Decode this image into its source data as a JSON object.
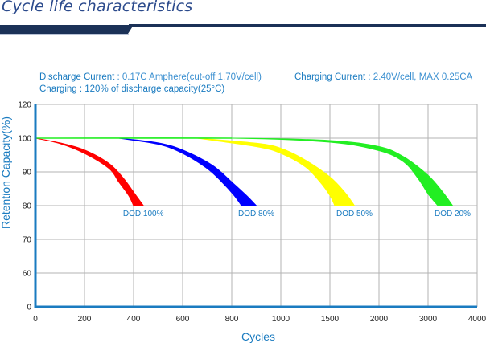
{
  "header": {
    "title": "Cycle life characteristics"
  },
  "notes": {
    "discharge_label": "Discharge Current",
    "discharge_value": " : 0.17C Amphere(cut-off 1.70V/cell)",
    "charging_current_label": "Charging Current",
    "charging_current_value": " : 2.40V/cell, MAX 0.25CA",
    "charging_label": "Charging : 120% of discharge capacity(25°C)"
  },
  "chart_data": {
    "type": "area",
    "title": "Cycle life characteristics",
    "xlabel": "Cycles",
    "ylabel": "Retention Capacity(%)",
    "x_ticks": [
      "0",
      "200",
      "400",
      "600",
      "800",
      "1000",
      "1500",
      "2000",
      "3000",
      "4000"
    ],
    "y_ticks": [
      "120",
      "100",
      "90",
      "80",
      "70",
      "60",
      "0"
    ],
    "y_tick_values": [
      120,
      100,
      90,
      80,
      70,
      60,
      0
    ],
    "x_scale_note": "x values given in tick-index units (0 = 0 cycles, 9 = 4000 cycles); axis is non-linear",
    "grid": true,
    "series": [
      {
        "name": "DOD 100%",
        "color": "#ff0000",
        "upper": [
          [
            0,
            100
          ],
          [
            0.5,
            98.6
          ],
          [
            1,
            96.5
          ],
          [
            1.5,
            92.5
          ],
          [
            1.8,
            88
          ],
          [
            2.0,
            84
          ],
          [
            2.2,
            80
          ]
        ],
        "lower": [
          [
            0,
            100
          ],
          [
            0.5,
            98.4
          ],
          [
            1,
            95.5
          ],
          [
            1.5,
            91
          ],
          [
            1.7,
            87
          ],
          [
            1.9,
            83
          ],
          [
            2.0,
            80
          ]
        ]
      },
      {
        "name": "DOD 80%",
        "color": "#0000ff",
        "upper": [
          [
            1.7,
            100
          ],
          [
            2.5,
            98.6
          ],
          [
            3,
            96.5
          ],
          [
            3.6,
            92
          ],
          [
            4.0,
            87
          ],
          [
            4.3,
            83
          ],
          [
            4.5,
            80
          ]
        ],
        "lower": [
          [
            1.7,
            100
          ],
          [
            2.5,
            98.2
          ],
          [
            3,
            95.5
          ],
          [
            3.5,
            91
          ],
          [
            3.8,
            87
          ],
          [
            4.05,
            83
          ],
          [
            4.2,
            80
          ]
        ]
      },
      {
        "name": "DOD 50%",
        "color": "#ffff00",
        "upper": [
          [
            3.3,
            100
          ],
          [
            4.5,
            98.5
          ],
          [
            5,
            97
          ],
          [
            5.5,
            93.5
          ],
          [
            6,
            88.5
          ],
          [
            6.3,
            84
          ],
          [
            6.5,
            80
          ]
        ],
        "lower": [
          [
            3.3,
            100
          ],
          [
            4.5,
            97.5
          ],
          [
            5,
            95.5
          ],
          [
            5.5,
            91.5
          ],
          [
            5.8,
            87
          ],
          [
            6.0,
            83
          ],
          [
            6.1,
            80
          ]
        ]
      },
      {
        "name": "DOD 20%",
        "color": "#22ee22",
        "upper": [
          [
            0,
            100
          ],
          [
            4,
            100
          ],
          [
            6,
            99.3
          ],
          [
            7,
            97.5
          ],
          [
            7.5,
            94.5
          ],
          [
            8.0,
            89
          ],
          [
            8.3,
            84
          ],
          [
            8.5,
            80
          ]
        ],
        "lower": [
          [
            0,
            100
          ],
          [
            4,
            100
          ],
          [
            6,
            98.8
          ],
          [
            7,
            96.3
          ],
          [
            7.5,
            93
          ],
          [
            7.8,
            88
          ],
          [
            8.0,
            83.5
          ],
          [
            8.2,
            80
          ]
        ]
      }
    ],
    "annotations": [
      "DOD 100%",
      "DOD 80%",
      "DOD 50%",
      "DOD 20%"
    ]
  }
}
